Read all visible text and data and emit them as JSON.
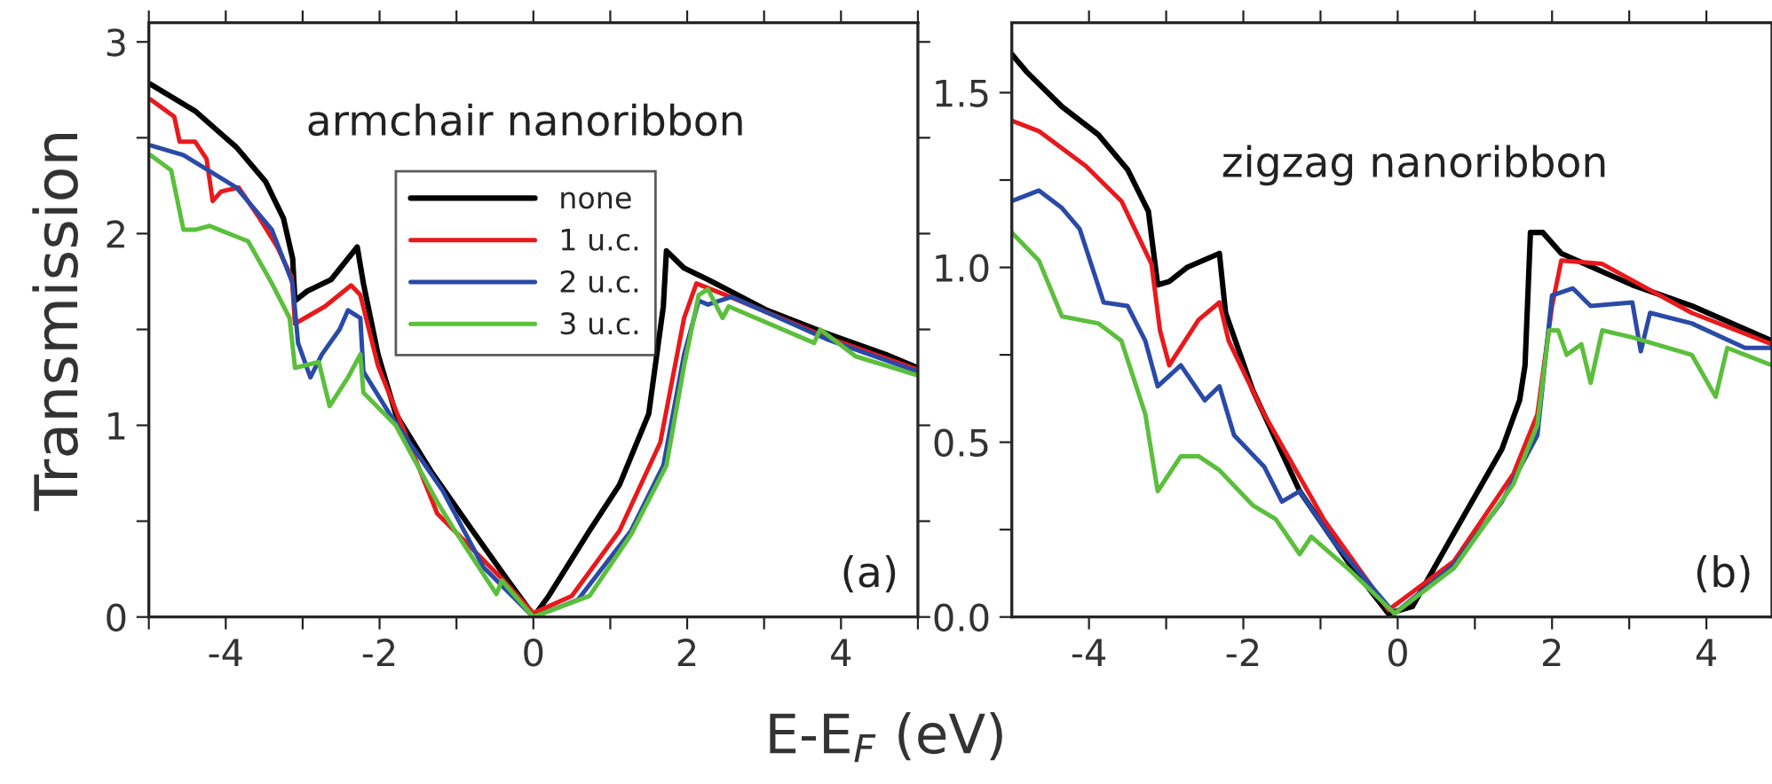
{
  "chart_data": [
    {
      "type": "line",
      "title": "armchair nanoribbon",
      "ylabel": "Transmission",
      "xlabel": "E-E$_{F}$ (eV)",
      "annotations": [
        "(a)"
      ],
      "xlim": [
        -5,
        5
      ],
      "ylim": [
        0,
        3.1
      ],
      "xticks": [
        {
          "value": -5,
          "label": null
        },
        -4,
        {
          "value": -3,
          "label": null
        },
        -2,
        {
          "value": -1,
          "label": null
        },
        0,
        {
          "value": 1,
          "label": null
        },
        2,
        {
          "value": 3,
          "label": null
        },
        4,
        {
          "value": 5,
          "label": null
        }
      ],
      "yticks": [
        0,
        {
          "value": 0.5,
          "label": null
        },
        1,
        {
          "value": 1.5,
          "label": null
        },
        2,
        {
          "value": 2.5,
          "label": null
        },
        3
      ],
      "legend": "top",
      "grid": false,
      "marker": "none",
      "line_style": "solid",
      "series": [
        {
          "name": "none",
          "color": "#000000",
          "x": [
            -4.98,
            -4.4,
            -3.86,
            -3.48,
            -3.25,
            -3.13,
            -3.1,
            -2.94,
            -2.63,
            -2.29,
            -2.21,
            -2.02,
            -1.79,
            -1.33,
            -0.79,
            -0.33,
            -0.02,
            0,
            0.2,
            0.73,
            1.12,
            1.5,
            1.69,
            1.73,
            1.96,
            2.27,
            3.04,
            3.81,
            4.58,
            5
          ],
          "values": [
            2.78,
            2.64,
            2.45,
            2.27,
            2.08,
            1.87,
            1.65,
            1.7,
            1.76,
            1.93,
            1.74,
            1.37,
            1.06,
            0.76,
            0.45,
            0.19,
            0.02,
            0,
            0.11,
            0.45,
            0.69,
            1.06,
            1.62,
            1.91,
            1.82,
            1.76,
            1.6,
            1.48,
            1.37,
            1.3
          ]
        },
        {
          "name": "1 u.c.",
          "color": "#e8191c",
          "x": [
            -4.98,
            -4.67,
            -4.6,
            -4.4,
            -4.25,
            -4.17,
            -4.06,
            -3.83,
            -3.56,
            -3.33,
            -3.14,
            -3.1,
            -2.71,
            -2.37,
            -2.25,
            -2.02,
            -1.25,
            -0.41,
            0,
            0.5,
            1.12,
            1.65,
            1.96,
            2.12,
            2.5,
            3.81,
            5
          ],
          "values": [
            2.7,
            2.61,
            2.48,
            2.48,
            2.39,
            2.17,
            2.22,
            2.24,
            2.08,
            1.93,
            1.77,
            1.53,
            1.62,
            1.73,
            1.68,
            1.31,
            0.54,
            0.2,
            0.02,
            0.11,
            0.45,
            0.91,
            1.56,
            1.74,
            1.68,
            1.46,
            1.29
          ]
        },
        {
          "name": "2 u.c.",
          "color": "#2a4aa8",
          "x": [
            -4.98,
            -4.55,
            -3.86,
            -3.4,
            -3.13,
            -3.06,
            -2.9,
            -2.75,
            -2.52,
            -2.41,
            -2.25,
            -2.21,
            -1.87,
            -1.18,
            -0.65,
            0,
            0.58,
            1.27,
            1.69,
            1.96,
            2.15,
            2.27,
            2.58,
            3.81,
            5
          ],
          "values": [
            2.46,
            2.41,
            2.24,
            2.02,
            1.74,
            1.43,
            1.25,
            1.37,
            1.5,
            1.6,
            1.56,
            1.28,
            1.06,
            0.66,
            0.26,
            0,
            0.09,
            0.45,
            0.79,
            1.37,
            1.65,
            1.63,
            1.67,
            1.45,
            1.28
          ]
        },
        {
          "name": "3 u.c.",
          "color": "#5bbf3c",
          "x": [
            -4.98,
            -4.71,
            -4.55,
            -4.4,
            -4.21,
            -3.71,
            -3.4,
            -3.17,
            -3.1,
            -2.79,
            -2.65,
            -2.41,
            -2.25,
            -2.21,
            -1.79,
            -1.25,
            -1.02,
            -0.48,
            -0.41,
            0,
            0.73,
            1.27,
            1.73,
            1.96,
            2.15,
            2.27,
            2.46,
            2.54,
            3.65,
            3.73,
            4.19,
            5
          ],
          "values": [
            2.41,
            2.33,
            2.02,
            2.02,
            2.04,
            1.96,
            1.74,
            1.56,
            1.3,
            1.33,
            1.1,
            1.25,
            1.37,
            1.17,
            1.0,
            0.6,
            0.45,
            0.12,
            0.19,
            0,
            0.11,
            0.43,
            0.79,
            1.31,
            1.68,
            1.71,
            1.56,
            1.62,
            1.43,
            1.5,
            1.36,
            1.26
          ]
        }
      ]
    },
    {
      "type": "line",
      "title": "zigzag nanoribbon",
      "annotations": [
        "(b)"
      ],
      "xlim": [
        -5,
        4.85
      ],
      "ylim": [
        0,
        1.7
      ],
      "xticks": [
        -4,
        {
          "value": -3,
          "label": null
        },
        -2,
        {
          "value": -1,
          "label": null
        },
        0,
        {
          "value": 1,
          "label": null
        },
        2,
        {
          "value": 3,
          "label": null
        },
        4
      ],
      "yticks": [
        {
          "value": 0,
          "label": "0.0"
        },
        {
          "value": 0.25,
          "label": null
        },
        0.5,
        {
          "value": 0.75,
          "label": null
        },
        {
          "value": 1,
          "label": "1.0"
        },
        {
          "value": 1.25,
          "label": null
        },
        1.5
      ],
      "legend": false,
      "grid": false,
      "marker": "none",
      "line_style": "solid",
      "series": [
        {
          "color": "#000000",
          "x": [
            -5,
            -4.81,
            -4.35,
            -3.88,
            -3.5,
            -3.23,
            -3.11,
            -2.96,
            -2.73,
            -2.31,
            -2.23,
            -1.88,
            -1.27,
            -0.65,
            -0.12,
            0.19,
            0.73,
            1.35,
            1.58,
            1.65,
            1.72,
            1.88,
            2.12,
            3.04,
            3.81,
            4.85
          ],
          "values": [
            1.61,
            1.56,
            1.46,
            1.38,
            1.28,
            1.16,
            0.95,
            0.96,
            1.0,
            1.04,
            0.87,
            0.65,
            0.36,
            0.16,
            0.01,
            0.03,
            0.24,
            0.48,
            0.62,
            0.72,
            1.1,
            1.1,
            1.04,
            0.95,
            0.89,
            0.79
          ]
        },
        {
          "color": "#e8191c",
          "x": [
            -5,
            -4.65,
            -4.04,
            -3.58,
            -3.19,
            -3.08,
            -2.96,
            -2.58,
            -2.31,
            -2.19,
            -1.73,
            -0.96,
            -0.12,
            0.73,
            1.5,
            1.81,
            2.0,
            2.12,
            2.65,
            3.81,
            4.85
          ],
          "values": [
            1.42,
            1.39,
            1.29,
            1.19,
            1.01,
            0.82,
            0.72,
            0.85,
            0.9,
            0.79,
            0.58,
            0.28,
            0.02,
            0.16,
            0.41,
            0.58,
            0.89,
            1.02,
            1.01,
            0.87,
            0.78
          ]
        },
        {
          "color": "#2a4aa8",
          "x": [
            -5,
            -4.65,
            -4.35,
            -4.12,
            -3.81,
            -3.5,
            -3.27,
            -3.11,
            -2.81,
            -2.5,
            -2.31,
            -2.12,
            -1.73,
            -1.5,
            -1.27,
            -0.81,
            -0.04,
            0.73,
            1.35,
            1.81,
            2.0,
            2.27,
            2.5,
            3.04,
            3.15,
            3.27,
            3.81,
            4.5,
            4.85
          ],
          "values": [
            1.19,
            1.22,
            1.17,
            1.11,
            0.9,
            0.89,
            0.79,
            0.66,
            0.72,
            0.62,
            0.66,
            0.52,
            0.43,
            0.33,
            0.36,
            0.21,
            0.01,
            0.15,
            0.33,
            0.52,
            0.92,
            0.94,
            0.89,
            0.9,
            0.76,
            0.87,
            0.84,
            0.77,
            0.77
          ]
        },
        {
          "color": "#5bbf3c",
          "x": [
            -5,
            -4.65,
            -4.35,
            -3.88,
            -3.58,
            -3.27,
            -3.11,
            -2.81,
            -2.58,
            -2.31,
            -1.88,
            -1.58,
            -1.27,
            -1.12,
            -0.65,
            -0.04,
            0.73,
            1.5,
            1.81,
            1.96,
            2.08,
            2.19,
            2.38,
            2.5,
            2.65,
            3.04,
            3.81,
            4.12,
            4.27,
            4.85
          ],
          "values": [
            1.1,
            1.02,
            0.86,
            0.84,
            0.79,
            0.58,
            0.36,
            0.46,
            0.46,
            0.42,
            0.32,
            0.28,
            0.18,
            0.23,
            0.14,
            0.01,
            0.14,
            0.38,
            0.55,
            0.82,
            0.82,
            0.75,
            0.78,
            0.67,
            0.82,
            0.8,
            0.75,
            0.63,
            0.77,
            0.72
          ]
        }
      ]
    }
  ]
}
